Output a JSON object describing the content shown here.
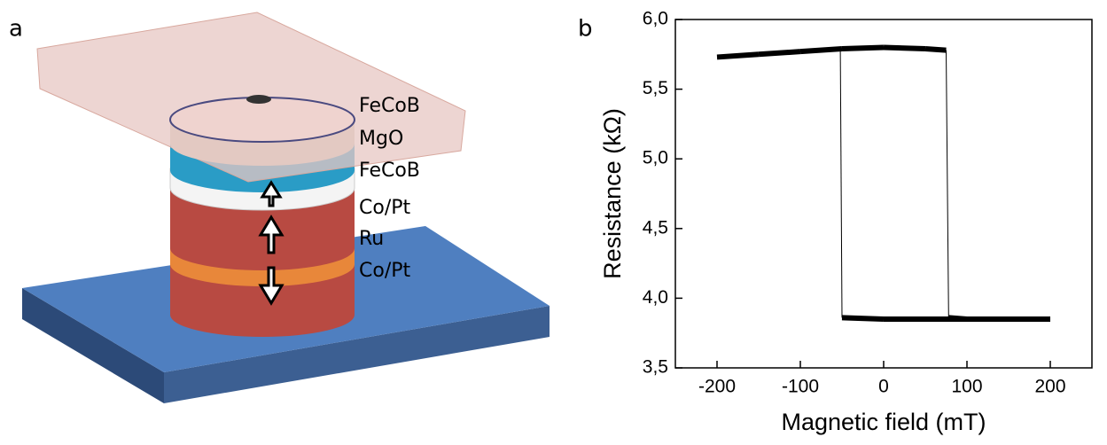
{
  "panel_a": {
    "label": "a",
    "layers": [
      "FeCoB",
      "MgO",
      "FeCoB",
      "Co/Pt",
      "Ru",
      "Co/Pt"
    ]
  },
  "chart_data": {
    "type": "line",
    "panel_label": "b",
    "x_label": "Magnetic field (mT)",
    "y_label": "Resistance (kΩ)",
    "x": [
      -200,
      -150,
      -100,
      -50,
      0,
      50,
      75,
      78,
      100,
      150,
      200,
      150,
      100,
      50,
      0,
      -50,
      -52
    ],
    "values": [
      5.73,
      5.75,
      5.77,
      5.79,
      5.8,
      5.79,
      5.78,
      3.86,
      3.85,
      3.85,
      3.85,
      3.85,
      3.85,
      3.85,
      3.85,
      3.86,
      5.78
    ],
    "color": "#000000",
    "xlim": [
      -250,
      250
    ],
    "xticks": [
      -200,
      -100,
      0,
      100,
      200
    ],
    "ylim": [
      3.5,
      6.0
    ],
    "yticks": [
      {
        "value": 3.5,
        "label": "3,5"
      },
      {
        "value": 4.0,
        "label": "4,0"
      },
      {
        "value": 4.5,
        "label": "4,5"
      },
      {
        "value": 5.0,
        "label": "5,0"
      },
      {
        "value": 5.5,
        "label": "5,5"
      },
      {
        "value": 6.0,
        "label": "6,0"
      }
    ]
  }
}
